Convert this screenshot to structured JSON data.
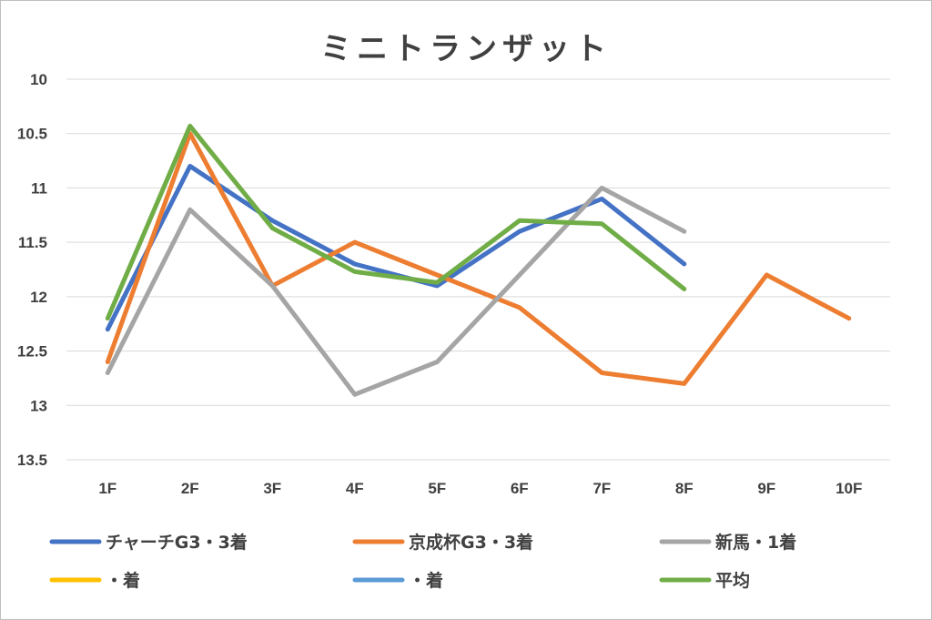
{
  "chart_data": {
    "type": "line",
    "title": "ミニトランザット",
    "categories": [
      "1F",
      "2F",
      "3F",
      "4F",
      "5F",
      "6F",
      "7F",
      "8F",
      "9F",
      "10F"
    ],
    "y_axis": {
      "reversed": true,
      "ylim": [
        10,
        13.5
      ],
      "ticks": [
        "10",
        "10.5",
        "11",
        "11.5",
        "12",
        "12.5",
        "13",
        "13.5"
      ]
    },
    "grid": true,
    "legend_position": "bottom",
    "series": [
      {
        "name": "チャーチG3・3着",
        "color": "#4472c4",
        "values": [
          12.3,
          10.8,
          11.3,
          11.7,
          11.9,
          11.4,
          11.1,
          11.7,
          null,
          null
        ]
      },
      {
        "name": "京成杯G3・3着",
        "color": "#ed7d31",
        "values": [
          12.6,
          10.5,
          11.9,
          11.5,
          11.8,
          12.1,
          12.7,
          12.8,
          11.8,
          12.2
        ]
      },
      {
        "name": "新馬・1着",
        "color": "#a5a5a5",
        "values": [
          12.7,
          11.2,
          11.9,
          12.9,
          12.6,
          11.8,
          11.0,
          11.4,
          null,
          null
        ]
      },
      {
        "name": "・着",
        "color": "#ffc000",
        "values": [
          null,
          null,
          null,
          null,
          null,
          null,
          null,
          null,
          null,
          null
        ]
      },
      {
        "name": "・着",
        "color": "#5b9bd5",
        "values": [
          null,
          null,
          null,
          null,
          null,
          null,
          null,
          null,
          null,
          null
        ]
      },
      {
        "name": "平均",
        "color": "#70ad47",
        "values": [
          12.2,
          10.43,
          11.37,
          11.77,
          11.87,
          11.3,
          11.33,
          11.93,
          null,
          null
        ]
      }
    ]
  }
}
